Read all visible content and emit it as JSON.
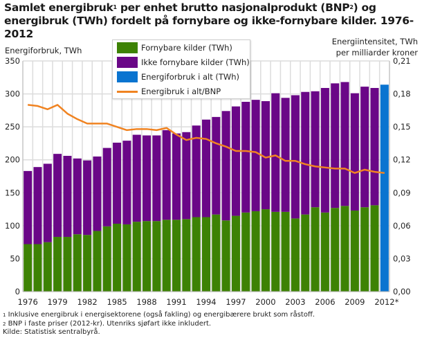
{
  "title": {
    "part1": "Samlet energibruk",
    "sup1": "1",
    "part2": " per enhet brutto nasjonalprodukt (BNP",
    "sup2": "2",
    "part3": ") og",
    "line2": "energibruk (TWh) fordelt på fornybare og ikke-fornybare kilder. 1976-2012"
  },
  "footnotes": {
    "n1_mark": "1",
    "n1": " Inklusive energibruk i energisektorene (også fakling) og energibærere brukt som råstoff.",
    "n2_mark": "2",
    "n2": " BNP i faste priser (2012-kr). Utenriks sjøfart ikke inkludert.",
    "source": "Kilde: Statistisk sentralbyrå."
  },
  "chart_data": {
    "type": "bar",
    "stacked": true,
    "ylabel_left": "Energiforbruk, TWh",
    "ylabel_right_line1": "Energiintensitet, TWh",
    "ylabel_right_line2": "per milliarder kroner",
    "ylim_left": [
      0,
      350
    ],
    "ylim_right": [
      0,
      0.21
    ],
    "left_ticks": [
      "0",
      "50",
      "100",
      "150",
      "200",
      "250",
      "300",
      "350"
    ],
    "right_ticks": [
      "0,00",
      "0,03",
      "0,06",
      "0,09",
      "0,12",
      "0,15",
      "0,18",
      "0,21"
    ],
    "x_tick_labels": [
      "1976",
      "1979",
      "1982",
      "1985",
      "1988",
      "1991",
      "1994",
      "1997",
      "2000",
      "2003",
      "2006",
      "2009",
      "2012*"
    ],
    "grid": true,
    "legend_position": "top-center",
    "categories": [
      1976,
      1977,
      1978,
      1979,
      1980,
      1981,
      1982,
      1983,
      1984,
      1985,
      1986,
      1987,
      1988,
      1989,
      1990,
      1991,
      1992,
      1993,
      1994,
      1995,
      1996,
      1997,
      1998,
      1999,
      2000,
      2001,
      2002,
      2003,
      2004,
      2005,
      2006,
      2007,
      2008,
      2009,
      2010,
      2011,
      2012
    ],
    "series": [
      {
        "name": "Fornybare kilder (TWh)",
        "color": "#3d8204",
        "axis": "left",
        "values": [
          72,
          72,
          75,
          83,
          83,
          87,
          86,
          92,
          99,
          103,
          102,
          106,
          107,
          107,
          109,
          109,
          110,
          113,
          113,
          117,
          108,
          115,
          120,
          122,
          125,
          121,
          121,
          111,
          117,
          128,
          120,
          127,
          130,
          123,
          128,
          131,
          null
        ]
      },
      {
        "name": "Ikke fornybare kilder (TWh)",
        "color": "#6a0787",
        "axis": "left",
        "values": [
          111,
          117,
          119,
          126,
          123,
          115,
          113,
          113,
          119,
          123,
          127,
          132,
          130,
          130,
          136,
          131,
          132,
          139,
          148,
          148,
          166,
          166,
          168,
          169,
          164,
          180,
          173,
          187,
          186,
          176,
          189,
          189,
          188,
          178,
          183,
          178,
          null
        ]
      },
      {
        "name": "Energiforbruk i alt (TWh)",
        "color": "#0a74d0",
        "axis": "left",
        "values": [
          null,
          null,
          null,
          null,
          null,
          null,
          null,
          null,
          null,
          null,
          null,
          null,
          null,
          null,
          null,
          null,
          null,
          null,
          null,
          null,
          null,
          null,
          null,
          null,
          null,
          null,
          null,
          null,
          null,
          null,
          null,
          null,
          null,
          null,
          null,
          null,
          314
        ]
      },
      {
        "name": "Energibruk i alt/BNP",
        "color": "#f08321",
        "axis": "right",
        "type": "line",
        "values": [
          0.17,
          0.169,
          0.166,
          0.17,
          0.162,
          0.157,
          0.153,
          0.153,
          0.153,
          0.15,
          0.147,
          0.148,
          0.148,
          0.147,
          0.149,
          0.143,
          0.138,
          0.14,
          0.139,
          0.135,
          0.132,
          0.128,
          0.128,
          0.127,
          0.122,
          0.124,
          0.119,
          0.119,
          0.116,
          0.114,
          0.113,
          0.112,
          0.112,
          0.108,
          0.111,
          0.109,
          0.108
        ]
      }
    ]
  }
}
